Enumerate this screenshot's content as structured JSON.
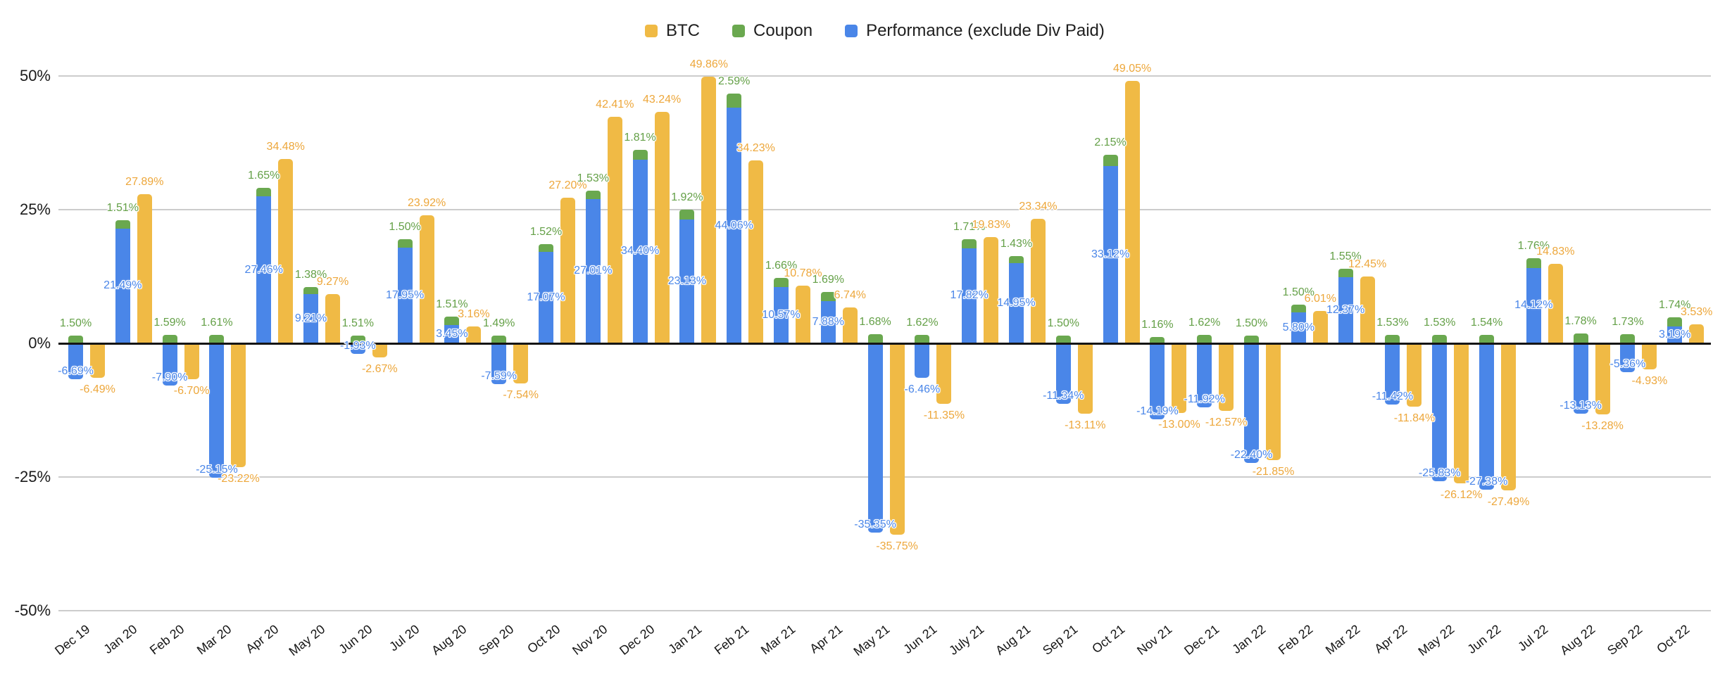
{
  "chart_data": {
    "type": "bar",
    "title": "",
    "structure": "Coupon segment stacked on top of Performance column; BTC drawn as separate adjacent column per month",
    "value_format": "0.00%",
    "grid": true,
    "legend_position": "top-center",
    "background_color": "#ffffff",
    "categories": [
      "Dec 19",
      "Jan 20",
      "Feb 20",
      "Mar 20",
      "Apr 20",
      "May 20",
      "Jun 20",
      "Jul 20",
      "Aug 20",
      "Sep 20",
      "Oct 20",
      "Nov 20",
      "Dec 20",
      "Jan 21",
      "Feb 21",
      "Mar 21",
      "Apr 21",
      "May 21",
      "Jun 21",
      "July 21",
      "Aug 21",
      "Sep 21",
      "Oct 21",
      "Nov 21",
      "Dec 21",
      "Jan 22",
      "Feb 22",
      "Mar 22",
      "Apr 22",
      "May 22",
      "Jun 22",
      "Jul 22",
      "Aug 22",
      "Sep 22",
      "Oct 22"
    ],
    "series": [
      {
        "name": "BTC",
        "color": "#F0BA45",
        "label_color": "#EDA73B",
        "values": [
          -6.49,
          27.89,
          -6.7,
          -23.22,
          34.48,
          9.27,
          -2.67,
          23.92,
          3.16,
          -7.54,
          27.2,
          42.41,
          43.24,
          49.86,
          34.23,
          10.78,
          6.74,
          -35.75,
          -11.35,
          19.83,
          23.34,
          -13.11,
          49.05,
          -13.0,
          -12.57,
          -21.85,
          6.01,
          12.45,
          -11.84,
          -26.12,
          -27.49,
          14.83,
          -13.28,
          -4.93,
          3.53
        ]
      },
      {
        "name": "Coupon",
        "color": "#6AA84F",
        "label_color": "#64A047",
        "values": [
          1.5,
          1.51,
          1.59,
          1.61,
          1.65,
          1.38,
          1.51,
          1.5,
          1.51,
          1.49,
          1.52,
          1.53,
          1.81,
          1.92,
          2.59,
          1.66,
          1.69,
          1.68,
          1.62,
          1.71,
          1.43,
          1.5,
          2.15,
          1.16,
          1.62,
          1.5,
          1.5,
          1.55,
          1.53,
          1.53,
          1.54,
          1.76,
          1.78,
          1.73,
          1.74
        ]
      },
      {
        "name": "Performance (exclude Div Paid)",
        "color": "#4A86E8",
        "label_color": "#4A86E8",
        "values": [
          -6.69,
          21.49,
          -7.9,
          -25.15,
          27.46,
          9.21,
          -1.93,
          17.95,
          3.45,
          -7.59,
          17.07,
          27.01,
          34.4,
          23.13,
          44.06,
          10.57,
          7.88,
          -35.35,
          -6.46,
          17.82,
          14.95,
          -11.34,
          33.12,
          -14.19,
          -11.92,
          -22.4,
          5.8,
          12.37,
          -11.42,
          -25.83,
          -27.38,
          14.12,
          -13.13,
          -5.36,
          3.19
        ]
      }
    ],
    "y_axis": {
      "range": [
        -50,
        50
      ],
      "ticks": [
        {
          "value": 50,
          "label": "50%"
        },
        {
          "value": 25,
          "label": "25%"
        },
        {
          "value": 0,
          "label": "0%"
        },
        {
          "value": -25,
          "label": "-25%"
        },
        {
          "value": -50,
          "label": "-50%"
        }
      ]
    }
  }
}
